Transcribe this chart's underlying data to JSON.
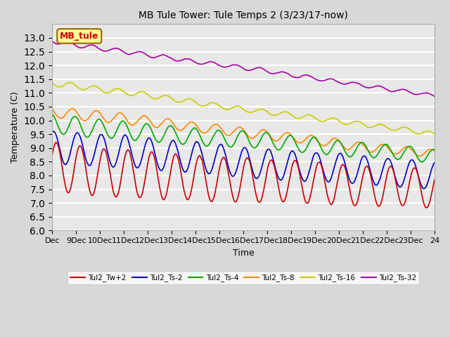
{
  "title": "MB Tule Tower: Tule Temps 2 (3/23/17-now)",
  "xlabel": "Time",
  "ylabel": "Temperature (C)",
  "ylim": [
    6.0,
    13.5
  ],
  "xlim": [
    0,
    360
  ],
  "background_color": "#e8e8e8",
  "grid_color": "#ffffff",
  "series_colors": {
    "Tul2_Tw+2": "#cc0000",
    "Tul2_Ts-2": "#0000cc",
    "Tul2_Ts-4": "#00aa00",
    "Tul2_Ts-8": "#ff8800",
    "Tul2_Ts-16": "#cccc00",
    "Tul2_Ts-32": "#aa00aa"
  },
  "xtick_labels": [
    "Dec",
    "9Dec",
    "10Dec",
    "11Dec",
    "12Dec",
    "13Dec",
    "14Dec",
    "15Dec",
    "16Dec",
    "17Dec",
    "18Dec",
    "19Dec",
    "20Dec",
    "21Dec",
    "22Dec",
    "23Dec",
    "24"
  ],
  "xtick_positions": [
    0,
    22.5,
    45,
    67.5,
    90,
    112.5,
    135,
    157.5,
    180,
    202.5,
    225,
    247.5,
    270,
    292.5,
    315,
    337.5,
    360
  ],
  "annotation_text": "MB_tule",
  "annotation_color": "#cc0000",
  "annotation_bg": "#ffff99",
  "annotation_border": "#996600"
}
